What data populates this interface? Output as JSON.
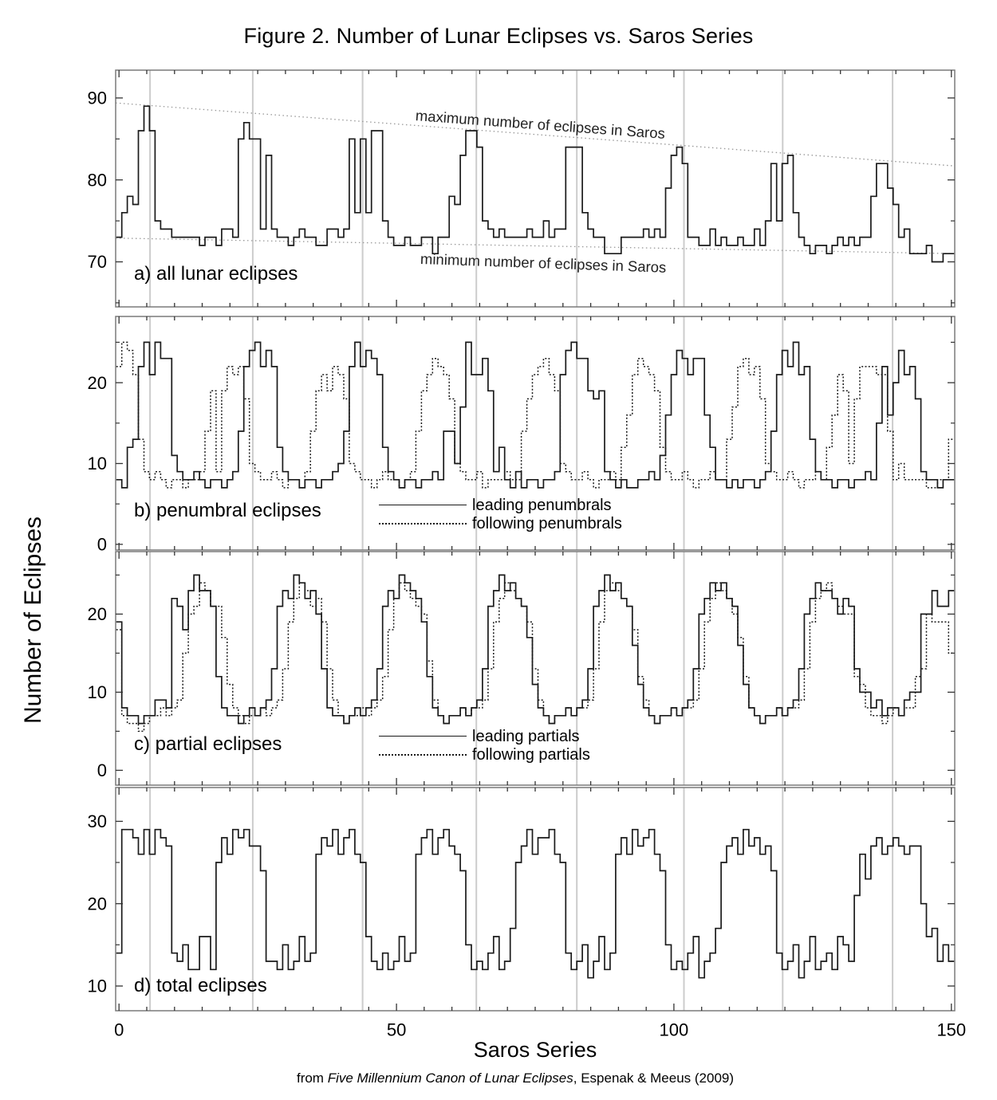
{
  "figure": {
    "title": "Figure 2. Number of Lunar Eclipses vs. Saros Series",
    "y_axis_label": "Number of Eclipses",
    "x_axis_label": "Saros Series",
    "caption": {
      "prefix": "from ",
      "italic_title": "Five Millennium Canon of Lunar Eclipses",
      "suffix": ", Espenak & Meeus (2009)"
    }
  },
  "chart_data": {
    "type": "line",
    "style": "step",
    "xlabel": "Saros Series",
    "ylabel": "Number of Eclipses",
    "x_range": [
      0,
      150
    ],
    "x_ticks_labeled": [
      0,
      50,
      100,
      150
    ],
    "x_minor_tick_step": 5,
    "gridline_x": [
      5.6,
      24.1,
      43.9,
      64.4,
      82.5,
      101.8,
      119.6,
      139.4
    ],
    "grid": "vertical-only",
    "colors": {
      "line": "#1a1a1a",
      "grid": "#cccccc",
      "box": "#7a7a7a",
      "tick": "#333333",
      "trend": "#999999",
      "text": "#000000",
      "background": "#ffffff"
    },
    "panels": [
      {
        "id": "a",
        "label": "a) all lunar eclipses",
        "ylim": [
          64.5,
          93.4
        ],
        "yticks": [
          70,
          80,
          90
        ],
        "yminor": [
          65,
          75,
          85
        ],
        "trend_lines": [
          {
            "label": "maximum number of eclipses in Saros",
            "start": 89.4,
            "end": 81.7
          },
          {
            "label": "minimum number of eclipses in Saros",
            "start": 72.9,
            "end": 71.0
          }
        ],
        "series": [
          {
            "name": "all lunar eclipses",
            "style": "solid",
            "values": [
              73,
              76,
              78,
              77,
              86,
              89,
              86,
              75,
              74,
              74,
              73,
              73,
              73,
              73,
              73,
              72,
              73,
              73,
              72,
              74,
              74,
              73,
              85,
              87,
              85,
              85,
              74,
              83,
              74,
              73,
              73,
              72,
              73,
              74,
              73,
              73,
              72,
              72,
              74,
              74,
              73,
              74,
              85,
              76,
              85,
              76,
              86,
              86,
              75,
              73,
              72,
              72,
              73,
              72,
              72,
              73,
              73,
              71,
              73,
              73,
              78,
              77,
              83,
              86,
              86,
              84,
              75,
              74,
              73,
              74,
              73,
              73,
              73,
              73,
              74,
              73,
              73,
              75,
              73,
              74,
              74,
              84,
              84,
              84,
              76,
              74,
              73,
              73,
              71,
              71,
              71,
              73,
              73,
              73,
              73,
              74,
              73,
              74,
              73,
              79,
              83,
              84,
              82,
              73,
              73,
              72,
              72,
              74,
              72,
              73,
              72,
              72,
              73,
              72,
              72,
              74,
              72,
              75,
              82,
              75,
              82,
              83,
              76,
              73,
              72,
              71,
              72,
              72,
              71,
              72,
              73,
              72,
              73,
              72,
              73,
              73,
              78,
              82,
              82,
              79,
              77,
              73,
              74,
              71,
              71,
              71,
              72,
              70,
              70,
              71,
              71
            ]
          }
        ]
      },
      {
        "id": "b",
        "label": "b) penumbral eclipses",
        "ylim": [
          -0.7,
          28.2
        ],
        "yticks": [
          0,
          10,
          20
        ],
        "yminor": [
          5,
          15,
          25
        ],
        "legend": [
          "leading penumbrals",
          "following penumbrals"
        ],
        "series": [
          {
            "name": "leading penumbrals",
            "style": "solid",
            "values": [
              8,
              7,
              12,
              13,
              22,
              25,
              21,
              25,
              23,
              23,
              11,
              9,
              8,
              8,
              9,
              8,
              7,
              8,
              8,
              7,
              8,
              9,
              14,
              22,
              24,
              25,
              22,
              24,
              22,
              12,
              9,
              8,
              8,
              7,
              8,
              8,
              7,
              8,
              8,
              9,
              10,
              14,
              22,
              25,
              22,
              24,
              23,
              21,
              12,
              9,
              8,
              7,
              8,
              8,
              7,
              8,
              8,
              9,
              8,
              14,
              14,
              10,
              17,
              25,
              21,
              21,
              23,
              19,
              9,
              12,
              8,
              7,
              9,
              7,
              8,
              8,
              7,
              8,
              8,
              9,
              21,
              24,
              25,
              23,
              23,
              19,
              18,
              19,
              9,
              8,
              7,
              8,
              7,
              7,
              8,
              8,
              9,
              8,
              11,
              16,
              21,
              24,
              23,
              21,
              23,
              23,
              16,
              12,
              8,
              8,
              7,
              8,
              7,
              8,
              8,
              7,
              8,
              9,
              14,
              21,
              24,
              22,
              25,
              21,
              22,
              13,
              9,
              8,
              8,
              7,
              8,
              8,
              7,
              8,
              8,
              9,
              8,
              15,
              22,
              16,
              20,
              24,
              21,
              22,
              18,
              9,
              8,
              8,
              7,
              8,
              8
            ]
          },
          {
            "name": "following penumbrals",
            "style": "dotted",
            "values": [
              22,
              25,
              24,
              21,
              13,
              9,
              8,
              9,
              8,
              7,
              8,
              8,
              7,
              8,
              8,
              9,
              14,
              19,
              9,
              19,
              22,
              21,
              22,
              18,
              10,
              9,
              8,
              8,
              9,
              8,
              7,
              8,
              8,
              7,
              9,
              14,
              19,
              21,
              19,
              22,
              21,
              18,
              10,
              9,
              8,
              8,
              7,
              8,
              9,
              8,
              8,
              7,
              8,
              9,
              14,
              19,
              21,
              23,
              22,
              21,
              18,
              10,
              9,
              8,
              8,
              9,
              7,
              8,
              8,
              8,
              9,
              8,
              8,
              14,
              18,
              21,
              22,
              23,
              21,
              19,
              10,
              9,
              8,
              8,
              9,
              8,
              7,
              8,
              8,
              9,
              8,
              12,
              16,
              21,
              23,
              22,
              21,
              19,
              12,
              9,
              8,
              8,
              9,
              8,
              7,
              8,
              8,
              9,
              8,
              8,
              13,
              17,
              22,
              23,
              21,
              22,
              18,
              10,
              9,
              8,
              8,
              9,
              8,
              7,
              8,
              8,
              9,
              8,
              12,
              16,
              21,
              19,
              10,
              18,
              22,
              22,
              22,
              21,
              21,
              14,
              8,
              10,
              8,
              8,
              8,
              8,
              7,
              7,
              8,
              8,
              13
            ]
          }
        ]
      },
      {
        "id": "c",
        "label": "c) partial eclipses",
        "ylim": [
          -1.9,
          28.0
        ],
        "yticks": [
          0,
          10,
          20
        ],
        "yminor": [
          5,
          15,
          25
        ],
        "legend": [
          "leading partials",
          "following partials"
        ],
        "series": [
          {
            "name": "leading partials",
            "style": "solid",
            "values": [
              19,
              8,
              7,
              7,
              6,
              7,
              7,
              9,
              9,
              8,
              22,
              21,
              18,
              23,
              25,
              23,
              23,
              21,
              12,
              8,
              7,
              7,
              6,
              7,
              8,
              7,
              8,
              9,
              13,
              21,
              23,
              22,
              25,
              24,
              22,
              23,
              20,
              13,
              8,
              7,
              7,
              6,
              7,
              8,
              7,
              8,
              9,
              13,
              21,
              23,
              22,
              25,
              24,
              23,
              22,
              19,
              12,
              8,
              7,
              6,
              7,
              7,
              8,
              7,
              8,
              9,
              13,
              21,
              23,
              25,
              23,
              24,
              22,
              21,
              17,
              11,
              8,
              7,
              6,
              7,
              7,
              8,
              7,
              8,
              9,
              13,
              21,
              23,
              25,
              23,
              24,
              22,
              21,
              16,
              11,
              8,
              7,
              6,
              7,
              7,
              8,
              7,
              8,
              9,
              13,
              20,
              22,
              24,
              23,
              24,
              22,
              21,
              16,
              11,
              8,
              7,
              6,
              7,
              7,
              8,
              7,
              8,
              9,
              13,
              20,
              22,
              24,
              23,
              23,
              22,
              20,
              22,
              21,
              13,
              10,
              10,
              8,
              9,
              7,
              8,
              8,
              7,
              9,
              10,
              10,
              20,
              20,
              23,
              21,
              21,
              23
            ]
          },
          {
            "name": "following partials",
            "style": "dotted",
            "values": [
              18,
              7,
              6,
              6,
              5,
              6,
              7,
              7,
              8,
              7,
              8,
              9,
              15,
              20,
              21,
              24,
              23,
              21,
              21,
              17,
              11,
              8,
              7,
              6,
              7,
              7,
              8,
              7,
              8,
              9,
              13,
              19,
              22,
              24,
              23,
              21,
              22,
              19,
              13,
              9,
              7,
              6,
              7,
              7,
              8,
              7,
              8,
              9,
              12,
              18,
              22,
              24,
              23,
              22,
              21,
              20,
              14,
              9,
              7,
              6,
              7,
              7,
              8,
              7,
              8,
              8,
              9,
              13,
              19,
              22,
              24,
              23,
              22,
              21,
              19,
              13,
              9,
              7,
              6,
              7,
              7,
              8,
              7,
              8,
              8,
              9,
              13,
              19,
              23,
              24,
              23,
              22,
              21,
              18,
              12,
              9,
              7,
              6,
              7,
              7,
              8,
              7,
              8,
              8,
              9,
              13,
              19,
              22,
              24,
              23,
              22,
              20,
              17,
              12,
              8,
              7,
              6,
              7,
              7,
              8,
              7,
              8,
              8,
              9,
              13,
              19,
              22,
              23,
              24,
              22,
              21,
              20,
              20,
              12,
              11,
              8,
              7,
              7,
              6,
              7,
              8,
              7,
              8,
              8,
              12,
              13,
              20,
              19,
              19,
              19,
              15
            ]
          }
        ]
      },
      {
        "id": "d",
        "label": "d) total eclipses",
        "ylim": [
          7.0,
          34.1
        ],
        "yticks": [
          10,
          20,
          30
        ],
        "yminor": [
          15,
          25
        ],
        "series": [
          {
            "name": "total eclipses",
            "style": "solid",
            "values": [
              14,
              29,
              29,
              28,
              26,
              29,
              26,
              29,
              28,
              27,
              14,
              13,
              15,
              12,
              12,
              16,
              16,
              12,
              25,
              28,
              26,
              29,
              28,
              29,
              27,
              27,
              24,
              13,
              13,
              12,
              15,
              12,
              13,
              16,
              13,
              14,
              26,
              28,
              27,
              29,
              26,
              28,
              29,
              26,
              25,
              16,
              13,
              12,
              14,
              12,
              13,
              16,
              13,
              14,
              26,
              28,
              29,
              26,
              28,
              29,
              27,
              26,
              24,
              15,
              12,
              13,
              12,
              14,
              16,
              12,
              13,
              17,
              25,
              27,
              29,
              26,
              28,
              28,
              29,
              26,
              25,
              14,
              12,
              13,
              15,
              11,
              13,
              16,
              12,
              14,
              26,
              28,
              26,
              29,
              27,
              28,
              29,
              26,
              24,
              15,
              12,
              13,
              12,
              14,
              16,
              11,
              13,
              14,
              17,
              25,
              27,
              28,
              26,
              29,
              27,
              28,
              26,
              27,
              24,
              14,
              12,
              13,
              15,
              11,
              13,
              16,
              12,
              13,
              14,
              12,
              16,
              15,
              13,
              21,
              26,
              23,
              27,
              28,
              26,
              27,
              28,
              27,
              26,
              27,
              27,
              20,
              16,
              17,
              13,
              15,
              13
            ]
          }
        ]
      }
    ]
  }
}
